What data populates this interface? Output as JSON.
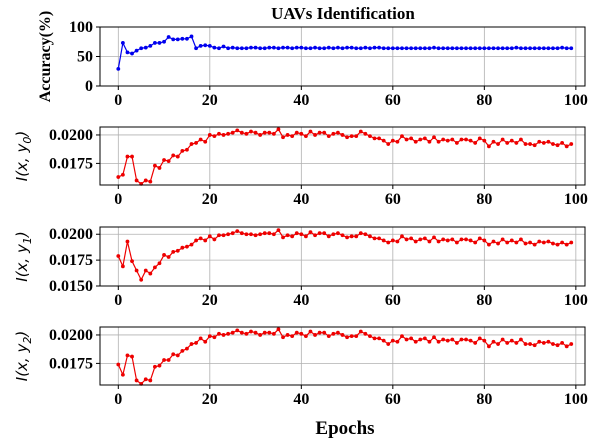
{
  "figure": {
    "title": "UAVs Identification",
    "xlabel": "Epochs"
  },
  "chart_data": [
    {
      "type": "line",
      "title": "UAVs Identification",
      "ylabel": "Accuracy(%)",
      "xlabel": "",
      "color": "#0000ee",
      "xlim": [
        -4,
        102
      ],
      "ylim": [
        0,
        100
      ],
      "xticks": [
        "0",
        "20",
        "40",
        "60",
        "80",
        "100"
      ],
      "yticks": [
        "0",
        "50",
        "100"
      ],
      "ytick_values": [
        0,
        50,
        100
      ],
      "grid": true,
      "series": [
        {
          "values": [
            29,
            73,
            57,
            55,
            60,
            64,
            65,
            68,
            73,
            73,
            75,
            83,
            79,
            79,
            80,
            80,
            84,
            64,
            68,
            69,
            68,
            65,
            64,
            67,
            64,
            65,
            64,
            64,
            64,
            65,
            65,
            64,
            64,
            65,
            65,
            64,
            65,
            65,
            64,
            65,
            65,
            64,
            64,
            65,
            64,
            64,
            65,
            64,
            65,
            64,
            65,
            65,
            64,
            64,
            65,
            64,
            65,
            65,
            64,
            64,
            64,
            64,
            64,
            64,
            64,
            64,
            64,
            64,
            64,
            65,
            64,
            64,
            64,
            64,
            64,
            64,
            64,
            64,
            64,
            64,
            64,
            64,
            64,
            64,
            64,
            64,
            64,
            65,
            64,
            64,
            64,
            64,
            64,
            64,
            64,
            64,
            64,
            65,
            64,
            64
          ]
        }
      ]
    },
    {
      "type": "line",
      "ylabel_prefix": "I(x, y",
      "ylabel_sub": "0",
      "ylabel_suffix": ")",
      "xlabel": "",
      "color": "#ee0000",
      "xlim": [
        -4,
        102
      ],
      "ylim": [
        0.0156,
        0.0207
      ],
      "xticks": [
        "0",
        "20",
        "40",
        "60",
        "80",
        "100"
      ],
      "yticks": [
        "0.0175",
        "0.0200"
      ],
      "ytick_values": [
        0.0175,
        0.02
      ],
      "grid": true,
      "series": [
        {
          "values": [
            0.0163,
            0.0165,
            0.0181,
            0.0181,
            0.016,
            0.0157,
            0.016,
            0.0159,
            0.0173,
            0.0171,
            0.0178,
            0.0177,
            0.0182,
            0.0181,
            0.0186,
            0.0187,
            0.0192,
            0.0193,
            0.0196,
            0.0194,
            0.02,
            0.0199,
            0.0201,
            0.02,
            0.0201,
            0.0202,
            0.0204,
            0.0202,
            0.0201,
            0.0203,
            0.0202,
            0.02,
            0.0202,
            0.0202,
            0.0201,
            0.0205,
            0.0198,
            0.02,
            0.0199,
            0.0202,
            0.0201,
            0.0199,
            0.0203,
            0.02,
            0.0202,
            0.0202,
            0.0199,
            0.0201,
            0.0202,
            0.02,
            0.0198,
            0.0199,
            0.0199,
            0.0203,
            0.0201,
            0.0199,
            0.0197,
            0.0197,
            0.0195,
            0.0192,
            0.0195,
            0.0194,
            0.0199,
            0.0196,
            0.0197,
            0.0194,
            0.0196,
            0.0197,
            0.0194,
            0.0198,
            0.0194,
            0.0196,
            0.0195,
            0.0196,
            0.0193,
            0.0196,
            0.0196,
            0.0195,
            0.0193,
            0.0197,
            0.0195,
            0.019,
            0.0194,
            0.0192,
            0.0196,
            0.0193,
            0.0195,
            0.0193,
            0.0196,
            0.0192,
            0.0192,
            0.0191,
            0.0194,
            0.0193,
            0.0194,
            0.0192,
            0.0191,
            0.0193,
            0.019,
            0.0192
          ]
        }
      ]
    },
    {
      "type": "line",
      "ylabel_prefix": "I(x, y",
      "ylabel_sub": "1",
      "ylabel_suffix": ")",
      "xlabel": "",
      "color": "#ee0000",
      "xlim": [
        -4,
        102
      ],
      "ylim": [
        0.015,
        0.0207
      ],
      "xticks": [
        "0",
        "20",
        "40",
        "60",
        "80",
        "100"
      ],
      "yticks": [
        "0.0150",
        "0.0175",
        "0.0200"
      ],
      "ytick_values": [
        0.015,
        0.0175,
        0.02
      ],
      "grid": true,
      "series": [
        {
          "values": [
            0.0179,
            0.0169,
            0.0193,
            0.0174,
            0.0165,
            0.0156,
            0.0165,
            0.0162,
            0.0168,
            0.0172,
            0.018,
            0.0178,
            0.0183,
            0.0184,
            0.0187,
            0.0188,
            0.019,
            0.0194,
            0.0196,
            0.0194,
            0.0198,
            0.0195,
            0.0199,
            0.0199,
            0.02,
            0.0201,
            0.0203,
            0.0201,
            0.02,
            0.02,
            0.0199,
            0.02,
            0.0201,
            0.0201,
            0.02,
            0.0204,
            0.0197,
            0.0199,
            0.0198,
            0.0201,
            0.02,
            0.0198,
            0.0202,
            0.0199,
            0.0201,
            0.0201,
            0.0198,
            0.02,
            0.0201,
            0.0199,
            0.0197,
            0.0198,
            0.0198,
            0.0201,
            0.02,
            0.0198,
            0.0196,
            0.0196,
            0.0194,
            0.0192,
            0.0194,
            0.0193,
            0.0198,
            0.0195,
            0.0196,
            0.0193,
            0.0195,
            0.0196,
            0.0193,
            0.0197,
            0.0193,
            0.0195,
            0.0194,
            0.0195,
            0.0192,
            0.0195,
            0.0195,
            0.0194,
            0.0192,
            0.0196,
            0.0194,
            0.019,
            0.0193,
            0.0191,
            0.0195,
            0.0192,
            0.0194,
            0.0192,
            0.0195,
            0.0191,
            0.0192,
            0.019,
            0.0193,
            0.0192,
            0.0193,
            0.0191,
            0.019,
            0.0192,
            0.019,
            0.0192
          ]
        }
      ]
    },
    {
      "type": "line",
      "ylabel_prefix": "I(x, y",
      "ylabel_sub": "2",
      "ylabel_suffix": ")",
      "xlabel": "Epochs",
      "color": "#ee0000",
      "xlim": [
        -4,
        102
      ],
      "ylim": [
        0.0156,
        0.0207
      ],
      "xticks": [
        "0",
        "20",
        "40",
        "60",
        "80",
        "100"
      ],
      "yticks": [
        "0.0175",
        "0.0200"
      ],
      "ytick_values": [
        0.0175,
        0.02
      ],
      "grid": true,
      "series": [
        {
          "values": [
            0.0174,
            0.0165,
            0.0182,
            0.0181,
            0.016,
            0.0157,
            0.0161,
            0.016,
            0.0172,
            0.0173,
            0.0178,
            0.0178,
            0.0183,
            0.0182,
            0.0186,
            0.0188,
            0.0192,
            0.0193,
            0.0197,
            0.0194,
            0.0199,
            0.0198,
            0.0201,
            0.02,
            0.0201,
            0.0202,
            0.0204,
            0.0202,
            0.0201,
            0.0203,
            0.0202,
            0.02,
            0.0202,
            0.0202,
            0.0201,
            0.0205,
            0.0198,
            0.02,
            0.0199,
            0.0202,
            0.0201,
            0.0199,
            0.0203,
            0.02,
            0.0202,
            0.0202,
            0.0199,
            0.0201,
            0.0202,
            0.02,
            0.0198,
            0.0199,
            0.0199,
            0.0203,
            0.0201,
            0.0199,
            0.0197,
            0.0197,
            0.0195,
            0.0192,
            0.0195,
            0.0194,
            0.0199,
            0.0196,
            0.0197,
            0.0194,
            0.0196,
            0.0197,
            0.0194,
            0.0198,
            0.0194,
            0.0196,
            0.0195,
            0.0196,
            0.0193,
            0.0196,
            0.0196,
            0.0195,
            0.0193,
            0.0197,
            0.0195,
            0.019,
            0.0194,
            0.0192,
            0.0196,
            0.0193,
            0.0195,
            0.0193,
            0.0196,
            0.0192,
            0.0192,
            0.0191,
            0.0194,
            0.0193,
            0.0194,
            0.0192,
            0.0191,
            0.0193,
            0.019,
            0.0192
          ]
        }
      ]
    }
  ]
}
